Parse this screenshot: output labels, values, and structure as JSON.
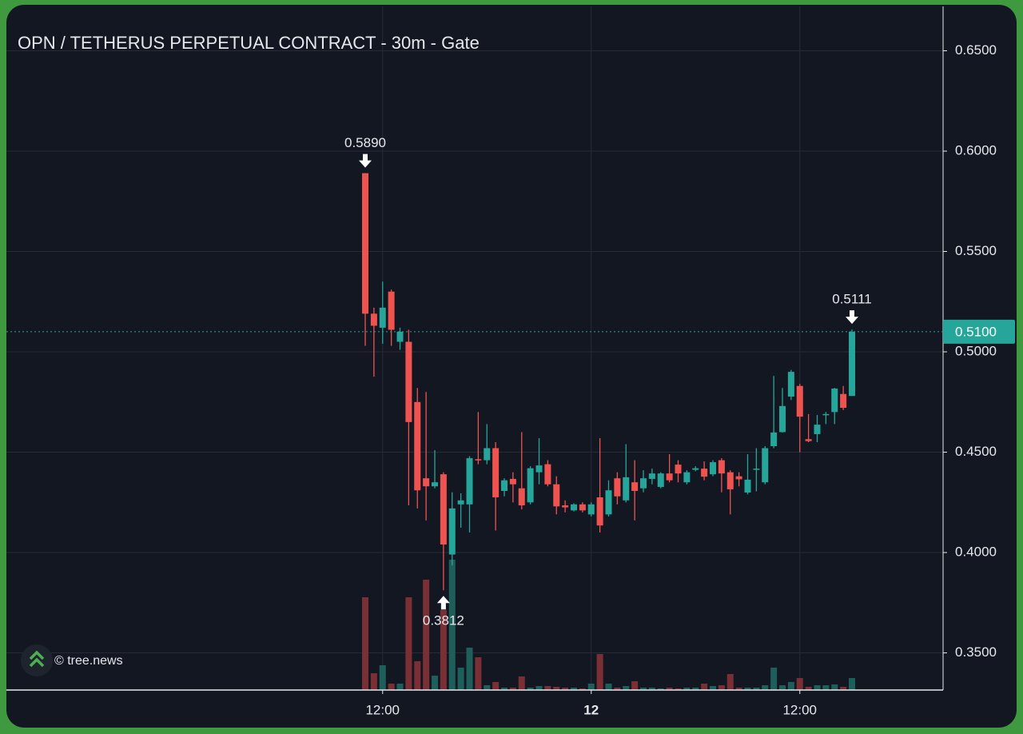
{
  "chart_data": {
    "type": "candlestick",
    "title": "OPN / TETHERUS PERPETUAL CONTRACT - 30m - Gate",
    "categories": [
      null,
      null,
      "12:00",
      null,
      null,
      null,
      null,
      null,
      null,
      null,
      null,
      null,
      null,
      null,
      null,
      null,
      null,
      null,
      null,
      null,
      null,
      null,
      null,
      null,
      null,
      null,
      "12",
      null,
      null,
      null,
      null,
      null,
      null,
      null,
      null,
      null,
      null,
      null,
      null,
      null,
      null,
      null,
      null,
      null,
      null,
      null,
      null,
      null,
      null,
      null,
      "12:00",
      null,
      null,
      null,
      null,
      null,
      null
    ],
    "open": [
      0.589,
      0.519,
      0.512,
      0.53,
      0.505,
      0.505,
      0.475,
      0.437,
      0.433,
      0.439,
      0.399,
      0.424,
      0.424,
      0.4465,
      0.446,
      0.452,
      0.4307,
      0.4367,
      0.432,
      0.425,
      0.44,
      0.444,
      0.434,
      0.4235,
      0.421,
      0.424,
      0.419,
      0.4275,
      0.419,
      0.437,
      0.426,
      0.435,
      0.432,
      0.4367,
      0.4327,
      0.4394,
      0.4438,
      0.435,
      0.4412,
      0.4418,
      0.439,
      0.446,
      0.44,
      0.438,
      0.4299,
      0.4412,
      0.435,
      0.453,
      0.46,
      0.4777,
      0.483,
      0.4565,
      0.459,
      0.4685,
      0.47,
      0.479,
      0.478
    ],
    "high": [
      0.589,
      0.522,
      0.535,
      0.531,
      0.512,
      0.511,
      0.482,
      0.48,
      0.451,
      0.44,
      0.43,
      0.4295,
      0.448,
      0.47,
      0.464,
      0.455,
      0.437,
      0.44,
      0.46,
      0.443,
      0.457,
      0.446,
      0.438,
      0.426,
      0.4245,
      0.425,
      0.425,
      0.457,
      0.436,
      0.44,
      0.454,
      0.446,
      0.441,
      0.4418,
      0.44,
      0.449,
      0.446,
      0.441,
      0.443,
      0.4454,
      0.446,
      0.447,
      0.441,
      0.44,
      0.449,
      0.452,
      0.453,
      0.488,
      0.482,
      0.491,
      0.484,
      0.469,
      0.4685,
      0.47,
      0.482,
      0.483,
      0.5111
    ],
    "low": [
      0.503,
      0.4876,
      0.504,
      0.503,
      0.501,
      0.4235,
      0.422,
      0.416,
      0.432,
      0.3812,
      0.3936,
      0.4124,
      0.41,
      0.444,
      0.444,
      0.411,
      0.428,
      0.425,
      0.4215,
      0.424,
      0.434,
      0.433,
      0.419,
      0.42,
      0.4205,
      0.42,
      0.418,
      0.41,
      0.418,
      0.424,
      0.425,
      0.416,
      0.43,
      0.434,
      0.432,
      0.435,
      0.435,
      0.434,
      0.4405,
      0.436,
      0.438,
      0.43,
      0.419,
      0.433,
      0.429,
      0.4305,
      0.434,
      0.452,
      0.4598,
      0.476,
      0.45,
      0.455,
      0.455,
      0.464,
      0.464,
      0.471,
      0.478
    ],
    "close": [
      0.519,
      0.513,
      0.522,
      0.511,
      0.51,
      0.465,
      0.431,
      0.433,
      0.435,
      0.404,
      0.422,
      0.426,
      0.447,
      0.446,
      0.452,
      0.4275,
      0.436,
      0.434,
      0.4235,
      0.442,
      0.4434,
      0.434,
      0.423,
      0.4225,
      0.424,
      0.421,
      0.424,
      0.4135,
      0.431,
      0.428,
      0.4375,
      0.4307,
      0.437,
      0.4394,
      0.4394,
      0.436,
      0.4394,
      0.44,
      0.442,
      0.4378,
      0.445,
      0.4394,
      0.4315,
      0.4365,
      0.4363,
      0.4418,
      0.452,
      0.4598,
      0.473,
      0.49,
      0.4677,
      0.4555,
      0.4637,
      0.469,
      0.4817,
      0.4721,
      0.51
    ],
    "volume": [
      116,
      21,
      31,
      8,
      8,
      116,
      36,
      138,
      18,
      100,
      163,
      28,
      53,
      41,
      6,
      10,
      3,
      3,
      17,
      3,
      5,
      5,
      4,
      3,
      3,
      2,
      8,
      45,
      8,
      3,
      5,
      11,
      3,
      3,
      2,
      3,
      2,
      3,
      3,
      8,
      5,
      6,
      20,
      3,
      3,
      3,
      6,
      28,
      6,
      10,
      15,
      4,
      6,
      6,
      7,
      4,
      15
    ],
    "up_color": "#26a69a",
    "down_color": "#ef5350",
    "up_volume_color": "#1f5f5b",
    "down_volume_color": "#7a2f35",
    "ylim": [
      0.3315,
      0.6721
    ],
    "yticks": [
      {
        "value": 0.35,
        "label": "0.3500"
      },
      {
        "value": 0.4,
        "label": "0.4000"
      },
      {
        "value": 0.45,
        "label": "0.4500"
      },
      {
        "value": 0.5,
        "label": "0.5000"
      },
      {
        "value": 0.55,
        "label": "0.5500"
      },
      {
        "value": 0.6,
        "label": "0.6000"
      },
      {
        "value": 0.65,
        "label": "0.6500"
      }
    ],
    "grid": true,
    "high_marker": {
      "value": 0.589,
      "label": "0.5890"
    },
    "low_marker": {
      "value": 0.3812,
      "label": "0.3812"
    },
    "last_high_marker": {
      "value": 0.5111,
      "label": "0.5111"
    },
    "last_price": {
      "value": 0.51,
      "label": "0.5100"
    },
    "watermark": "© tree.news"
  }
}
